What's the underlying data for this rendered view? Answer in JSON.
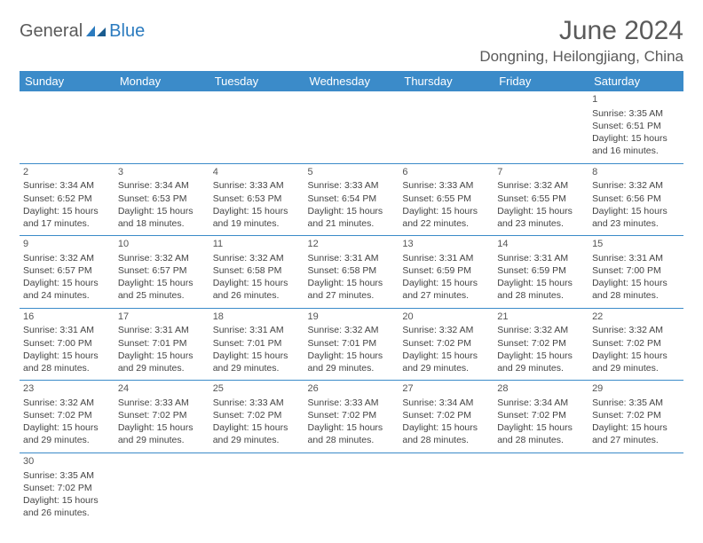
{
  "logo": {
    "text1": "General",
    "text2": "Blue"
  },
  "title": "June 2024",
  "location": "Dongning, Heilongjiang, China",
  "colors": {
    "header_bg": "#3b8bc9",
    "header_text": "#ffffff",
    "border": "#3b8bc9",
    "body_text": "#444444",
    "title_text": "#5a5a5a",
    "logo_blue": "#2b7bbf"
  },
  "weekdays": [
    "Sunday",
    "Monday",
    "Tuesday",
    "Wednesday",
    "Thursday",
    "Friday",
    "Saturday"
  ],
  "weeks": [
    [
      null,
      null,
      null,
      null,
      null,
      null,
      {
        "n": "1",
        "sunrise": "Sunrise: 3:35 AM",
        "sunset": "Sunset: 6:51 PM",
        "d1": "Daylight: 15 hours",
        "d2": "and 16 minutes."
      }
    ],
    [
      {
        "n": "2",
        "sunrise": "Sunrise: 3:34 AM",
        "sunset": "Sunset: 6:52 PM",
        "d1": "Daylight: 15 hours",
        "d2": "and 17 minutes."
      },
      {
        "n": "3",
        "sunrise": "Sunrise: 3:34 AM",
        "sunset": "Sunset: 6:53 PM",
        "d1": "Daylight: 15 hours",
        "d2": "and 18 minutes."
      },
      {
        "n": "4",
        "sunrise": "Sunrise: 3:33 AM",
        "sunset": "Sunset: 6:53 PM",
        "d1": "Daylight: 15 hours",
        "d2": "and 19 minutes."
      },
      {
        "n": "5",
        "sunrise": "Sunrise: 3:33 AM",
        "sunset": "Sunset: 6:54 PM",
        "d1": "Daylight: 15 hours",
        "d2": "and 21 minutes."
      },
      {
        "n": "6",
        "sunrise": "Sunrise: 3:33 AM",
        "sunset": "Sunset: 6:55 PM",
        "d1": "Daylight: 15 hours",
        "d2": "and 22 minutes."
      },
      {
        "n": "7",
        "sunrise": "Sunrise: 3:32 AM",
        "sunset": "Sunset: 6:55 PM",
        "d1": "Daylight: 15 hours",
        "d2": "and 23 minutes."
      },
      {
        "n": "8",
        "sunrise": "Sunrise: 3:32 AM",
        "sunset": "Sunset: 6:56 PM",
        "d1": "Daylight: 15 hours",
        "d2": "and 23 minutes."
      }
    ],
    [
      {
        "n": "9",
        "sunrise": "Sunrise: 3:32 AM",
        "sunset": "Sunset: 6:57 PM",
        "d1": "Daylight: 15 hours",
        "d2": "and 24 minutes."
      },
      {
        "n": "10",
        "sunrise": "Sunrise: 3:32 AM",
        "sunset": "Sunset: 6:57 PM",
        "d1": "Daylight: 15 hours",
        "d2": "and 25 minutes."
      },
      {
        "n": "11",
        "sunrise": "Sunrise: 3:32 AM",
        "sunset": "Sunset: 6:58 PM",
        "d1": "Daylight: 15 hours",
        "d2": "and 26 minutes."
      },
      {
        "n": "12",
        "sunrise": "Sunrise: 3:31 AM",
        "sunset": "Sunset: 6:58 PM",
        "d1": "Daylight: 15 hours",
        "d2": "and 27 minutes."
      },
      {
        "n": "13",
        "sunrise": "Sunrise: 3:31 AM",
        "sunset": "Sunset: 6:59 PM",
        "d1": "Daylight: 15 hours",
        "d2": "and 27 minutes."
      },
      {
        "n": "14",
        "sunrise": "Sunrise: 3:31 AM",
        "sunset": "Sunset: 6:59 PM",
        "d1": "Daylight: 15 hours",
        "d2": "and 28 minutes."
      },
      {
        "n": "15",
        "sunrise": "Sunrise: 3:31 AM",
        "sunset": "Sunset: 7:00 PM",
        "d1": "Daylight: 15 hours",
        "d2": "and 28 minutes."
      }
    ],
    [
      {
        "n": "16",
        "sunrise": "Sunrise: 3:31 AM",
        "sunset": "Sunset: 7:00 PM",
        "d1": "Daylight: 15 hours",
        "d2": "and 28 minutes."
      },
      {
        "n": "17",
        "sunrise": "Sunrise: 3:31 AM",
        "sunset": "Sunset: 7:01 PM",
        "d1": "Daylight: 15 hours",
        "d2": "and 29 minutes."
      },
      {
        "n": "18",
        "sunrise": "Sunrise: 3:31 AM",
        "sunset": "Sunset: 7:01 PM",
        "d1": "Daylight: 15 hours",
        "d2": "and 29 minutes."
      },
      {
        "n": "19",
        "sunrise": "Sunrise: 3:32 AM",
        "sunset": "Sunset: 7:01 PM",
        "d1": "Daylight: 15 hours",
        "d2": "and 29 minutes."
      },
      {
        "n": "20",
        "sunrise": "Sunrise: 3:32 AM",
        "sunset": "Sunset: 7:02 PM",
        "d1": "Daylight: 15 hours",
        "d2": "and 29 minutes."
      },
      {
        "n": "21",
        "sunrise": "Sunrise: 3:32 AM",
        "sunset": "Sunset: 7:02 PM",
        "d1": "Daylight: 15 hours",
        "d2": "and 29 minutes."
      },
      {
        "n": "22",
        "sunrise": "Sunrise: 3:32 AM",
        "sunset": "Sunset: 7:02 PM",
        "d1": "Daylight: 15 hours",
        "d2": "and 29 minutes."
      }
    ],
    [
      {
        "n": "23",
        "sunrise": "Sunrise: 3:32 AM",
        "sunset": "Sunset: 7:02 PM",
        "d1": "Daylight: 15 hours",
        "d2": "and 29 minutes."
      },
      {
        "n": "24",
        "sunrise": "Sunrise: 3:33 AM",
        "sunset": "Sunset: 7:02 PM",
        "d1": "Daylight: 15 hours",
        "d2": "and 29 minutes."
      },
      {
        "n": "25",
        "sunrise": "Sunrise: 3:33 AM",
        "sunset": "Sunset: 7:02 PM",
        "d1": "Daylight: 15 hours",
        "d2": "and 29 minutes."
      },
      {
        "n": "26",
        "sunrise": "Sunrise: 3:33 AM",
        "sunset": "Sunset: 7:02 PM",
        "d1": "Daylight: 15 hours",
        "d2": "and 28 minutes."
      },
      {
        "n": "27",
        "sunrise": "Sunrise: 3:34 AM",
        "sunset": "Sunset: 7:02 PM",
        "d1": "Daylight: 15 hours",
        "d2": "and 28 minutes."
      },
      {
        "n": "28",
        "sunrise": "Sunrise: 3:34 AM",
        "sunset": "Sunset: 7:02 PM",
        "d1": "Daylight: 15 hours",
        "d2": "and 28 minutes."
      },
      {
        "n": "29",
        "sunrise": "Sunrise: 3:35 AM",
        "sunset": "Sunset: 7:02 PM",
        "d1": "Daylight: 15 hours",
        "d2": "and 27 minutes."
      }
    ],
    [
      {
        "n": "30",
        "sunrise": "Sunrise: 3:35 AM",
        "sunset": "Sunset: 7:02 PM",
        "d1": "Daylight: 15 hours",
        "d2": "and 26 minutes."
      },
      null,
      null,
      null,
      null,
      null,
      null
    ]
  ]
}
